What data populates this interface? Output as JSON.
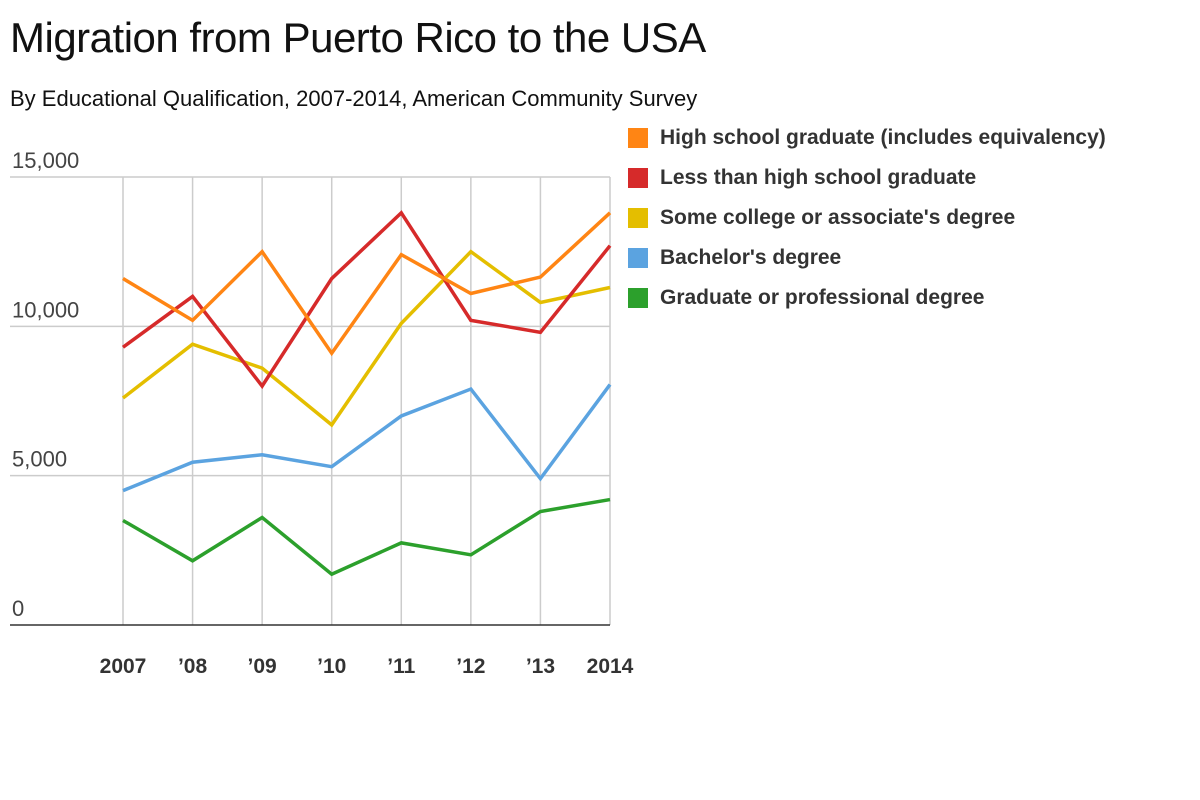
{
  "title": "Migration from Puerto Rico to the USA",
  "subtitle": "By Educational Qualification, 2007-2014, American Community Survey",
  "chart_data": {
    "type": "line",
    "categories": [
      "2007",
      "’08",
      "’09",
      "’10",
      "’11",
      "’12",
      "’13",
      "2014"
    ],
    "ylim": [
      0,
      15000
    ],
    "yticks": [
      {
        "value": 0,
        "label": "0"
      },
      {
        "value": 5000,
        "label": "5,000"
      },
      {
        "value": 10000,
        "label": "10,000"
      },
      {
        "value": 15000,
        "label": "15,000"
      }
    ],
    "grid": true,
    "legend_position": "top-right",
    "series": [
      {
        "name": "High school graduate (includes equivalency)",
        "color": "#ff8514",
        "values": [
          11600,
          10200,
          12500,
          9100,
          12400,
          11100,
          11650,
          13800
        ]
      },
      {
        "name": "Less than high school graduate",
        "color": "#d62a2a",
        "values": [
          9300,
          11000,
          8000,
          11600,
          13800,
          10200,
          9800,
          12700
        ]
      },
      {
        "name": "Some college or associate's degree",
        "color": "#e4be00",
        "values": [
          7600,
          9400,
          8600,
          6700,
          10100,
          12500,
          10800,
          11300
        ]
      },
      {
        "name": "Bachelor's degree",
        "color": "#5ba3e0",
        "values": [
          4500,
          5450,
          5700,
          5300,
          7000,
          7900,
          4900,
          8050
        ]
      },
      {
        "name": "Graduate or professional degree",
        "color": "#2ca02c",
        "values": [
          3500,
          2150,
          3600,
          1700,
          2750,
          2350,
          3800,
          4200
        ]
      }
    ]
  }
}
